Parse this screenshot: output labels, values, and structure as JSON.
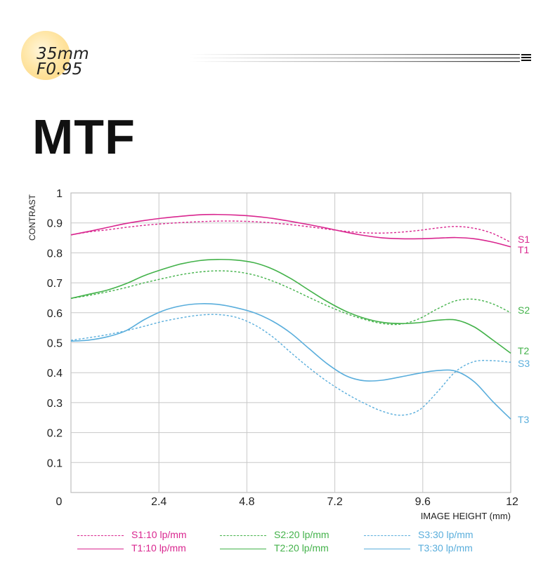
{
  "badge": {
    "line1": "35mm",
    "line2": "F0.95",
    "color": "#fbd37a"
  },
  "header": {
    "title": "MTF",
    "menu_icon": "menu-icon"
  },
  "chart_data": {
    "type": "line",
    "title": "",
    "xlabel": "IMAGE HEIGHT  (mm)",
    "ylabel": "CONTRAST",
    "xlim": [
      0,
      12
    ],
    "ylim": [
      0,
      1
    ],
    "x_ticks": [
      "0",
      "2.4",
      "4.8",
      "7.2",
      "9.6",
      "12"
    ],
    "x_tick_values": [
      0,
      2.4,
      4.8,
      7.2,
      9.6,
      12
    ],
    "y_ticks": [
      "0.1",
      "0.2",
      "0.3",
      "0.4",
      "0.5",
      "0.6",
      "0.7",
      "0.8",
      "0.9",
      "1"
    ],
    "y_tick_values": [
      0.1,
      0.2,
      0.3,
      0.4,
      0.5,
      0.6,
      0.7,
      0.8,
      0.9,
      1.0
    ],
    "grid": true,
    "legend_position": "bottom",
    "x": [
      0,
      0.5,
      1,
      1.5,
      2,
      2.5,
      3,
      3.5,
      4,
      4.5,
      5,
      5.5,
      6,
      6.5,
      7,
      7.5,
      8,
      8.5,
      9,
      9.5,
      10,
      10.5,
      11,
      11.5,
      12
    ],
    "series": [
      {
        "name": "S1:10 lp/mm",
        "end_label": "S1",
        "color": "#d9268f",
        "dash": true,
        "values": [
          0.86,
          0.87,
          0.877,
          0.885,
          0.892,
          0.897,
          0.901,
          0.904,
          0.906,
          0.906,
          0.904,
          0.9,
          0.894,
          0.887,
          0.879,
          0.872,
          0.867,
          0.866,
          0.869,
          0.875,
          0.883,
          0.888,
          0.882,
          0.865,
          0.835
        ]
      },
      {
        "name": "T1:10 lp/mm",
        "end_label": "T1",
        "color": "#d9268f",
        "dash": false,
        "values": [
          0.86,
          0.872,
          0.885,
          0.898,
          0.908,
          0.916,
          0.922,
          0.927,
          0.928,
          0.926,
          0.922,
          0.915,
          0.905,
          0.894,
          0.882,
          0.869,
          0.858,
          0.85,
          0.847,
          0.847,
          0.849,
          0.851,
          0.847,
          0.836,
          0.82
        ]
      },
      {
        "name": "S2:20 lp/mm",
        "end_label": "S2",
        "color": "#43b24a",
        "dash": true,
        "values": [
          0.648,
          0.658,
          0.67,
          0.684,
          0.7,
          0.714,
          0.727,
          0.736,
          0.74,
          0.737,
          0.726,
          0.706,
          0.68,
          0.651,
          0.623,
          0.598,
          0.578,
          0.564,
          0.562,
          0.58,
          0.613,
          0.64,
          0.645,
          0.63,
          0.6
        ]
      },
      {
        "name": "T2:20 lp/mm",
        "end_label": "T2",
        "color": "#43b24a",
        "dash": false,
        "values": [
          0.648,
          0.662,
          0.676,
          0.697,
          0.724,
          0.745,
          0.763,
          0.774,
          0.778,
          0.776,
          0.767,
          0.746,
          0.714,
          0.675,
          0.637,
          0.605,
          0.582,
          0.568,
          0.564,
          0.567,
          0.575,
          0.576,
          0.553,
          0.51,
          0.465
        ]
      },
      {
        "name": "S3:30 lp/mm",
        "end_label": "S3",
        "color": "#5aaedc",
        "dash": true,
        "values": [
          0.508,
          0.517,
          0.527,
          0.54,
          0.555,
          0.571,
          0.583,
          0.592,
          0.594,
          0.585,
          0.56,
          0.52,
          0.467,
          0.416,
          0.37,
          0.331,
          0.298,
          0.271,
          0.258,
          0.275,
          0.336,
          0.404,
          0.437,
          0.44,
          0.435
        ]
      },
      {
        "name": "T3:30 lp/mm",
        "end_label": "T3",
        "color": "#5aaedc",
        "dash": false,
        "values": [
          0.505,
          0.509,
          0.52,
          0.54,
          0.577,
          0.606,
          0.623,
          0.63,
          0.628,
          0.617,
          0.6,
          0.572,
          0.532,
          0.48,
          0.429,
          0.39,
          0.373,
          0.375,
          0.386,
          0.398,
          0.407,
          0.405,
          0.37,
          0.305,
          0.245
        ]
      }
    ]
  }
}
